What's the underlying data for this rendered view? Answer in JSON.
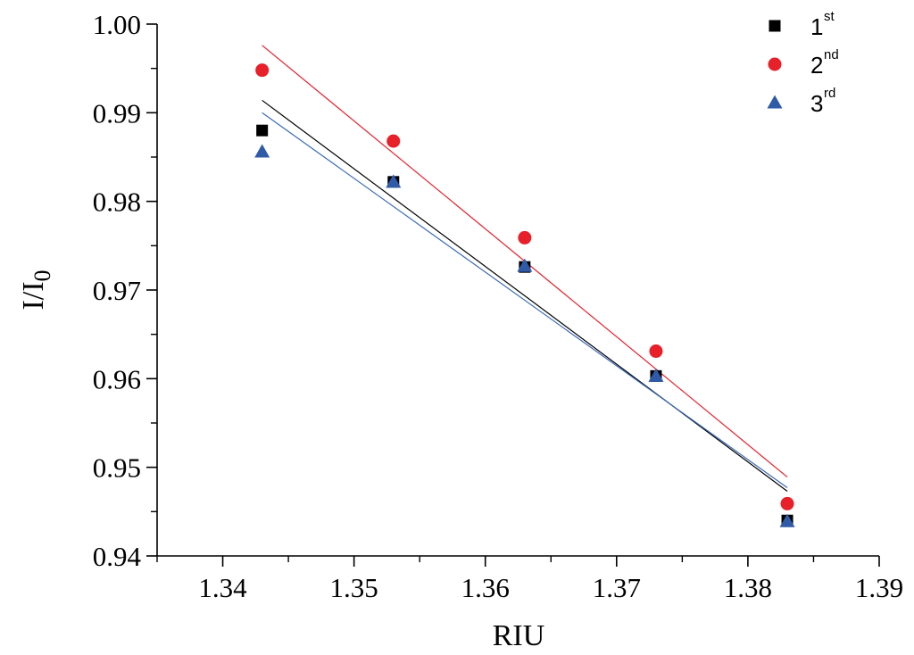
{
  "chart_data": {
    "type": "scatter",
    "xlabel": "RIU",
    "ylabel": {
      "main": "I/I",
      "sub": "0"
    },
    "xlim": [
      1.335,
      1.39
    ],
    "ylim": [
      0.94,
      1.0
    ],
    "x_ticks": [
      1.34,
      1.35,
      1.36,
      1.37,
      1.38,
      1.39
    ],
    "x_tick_labels": [
      "1.34",
      "1.35",
      "1.36",
      "1.37",
      "1.38",
      "1.39"
    ],
    "y_ticks": [
      0.94,
      0.95,
      0.96,
      0.97,
      0.98,
      0.99,
      1.0
    ],
    "y_tick_labels": [
      "0.94",
      "0.95",
      "0.96",
      "0.97",
      "0.98",
      "0.99",
      "1.00"
    ],
    "x_minor_step": 0.005,
    "y_minor_step": 0.005,
    "grid": false,
    "legend_position": "top-right",
    "series": [
      {
        "name": "1",
        "suffix": "st",
        "marker": "square",
        "color": "#000000",
        "line_color": "#000000",
        "x": [
          1.343,
          1.353,
          1.363,
          1.373,
          1.383
        ],
        "y": [
          0.988,
          0.9822,
          0.9726,
          0.9603,
          0.944
        ],
        "fit": {
          "x": [
            1.343,
            1.383
          ],
          "y": [
            0.9914,
            0.9473
          ]
        }
      },
      {
        "name": "2",
        "suffix": "nd",
        "marker": "circle",
        "color": "#e8202a",
        "line_color": "#e8202a",
        "x": [
          1.343,
          1.353,
          1.363,
          1.373,
          1.383
        ],
        "y": [
          0.9948,
          0.9868,
          0.9759,
          0.9631,
          0.9459
        ],
        "fit": {
          "x": [
            1.343,
            1.383
          ],
          "y": [
            0.9976,
            0.9489
          ]
        }
      },
      {
        "name": "3",
        "suffix": "rd",
        "marker": "triangle",
        "color": "#2e5aa8",
        "line_color": "#3a6ab8",
        "x": [
          1.343,
          1.353,
          1.363,
          1.373,
          1.383
        ],
        "y": [
          0.9856,
          0.9822,
          0.9727,
          0.9603,
          0.9439
        ],
        "fit": {
          "x": [
            1.343,
            1.383
          ],
          "y": [
            0.99,
            0.9477
          ]
        }
      }
    ]
  }
}
